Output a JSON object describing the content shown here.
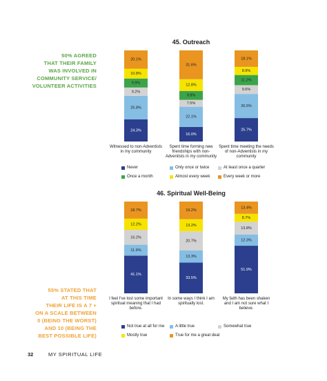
{
  "chart_data": [
    {
      "type": "bar",
      "stacked": true,
      "title": "45. Outreach",
      "categories": [
        "Witnessed to non-Adventists in my community",
        "Spent time forming new friendships with non-Adventists in my community",
        "Spent time meeting the needs of non-Adventists in my community"
      ],
      "series": [
        {
          "name": "Never",
          "color": "#2b3f8e",
          "values": [
            24.3,
            16.0,
            25.7
          ],
          "value_labels": [
            "24.3%",
            "16.0%",
            "25.7%"
          ]
        },
        {
          "name": "Only once or twice",
          "color": "#86bde3",
          "values": [
            25.8,
            22.1,
            26.5
          ],
          "value_labels": [
            "25.8%",
            "22.1%",
            "26.5%"
          ]
        },
        {
          "name": "At least once a quarter",
          "color": "#d3d3d3",
          "values": [
            9.2,
            7.5,
            9.6
          ],
          "value_labels": [
            "9.2%",
            "7.5%",
            "9.6%"
          ]
        },
        {
          "name": "Once a month",
          "color": "#3ba449",
          "values": [
            9.9,
            9.8,
            11.2
          ],
          "value_labels": [
            "9.9%",
            "9.8%",
            "11.2%"
          ]
        },
        {
          "name": "Almost every week",
          "color": "#f6e400",
          "values": [
            10.8,
            12.8,
            8.9
          ],
          "value_labels": [
            "10.8%",
            "12.8%",
            "8.9%"
          ]
        },
        {
          "name": "Every week or more",
          "color": "#e99520",
          "values": [
            20.1,
            31.6,
            18.1
          ],
          "value_labels": [
            "20.1%",
            "31.6%",
            "18.1%"
          ]
        }
      ]
    },
    {
      "type": "bar",
      "stacked": true,
      "title": "46. Spiritual Well-Being",
      "categories": [
        "I feel I've lost some important spiritual meaning that I had before.",
        "In some ways I think I am spiritually lost.",
        "My faith has been shaken and I am not sure what I believe."
      ],
      "series": [
        {
          "name": "Not true at all for me",
          "color": "#2b3f8e",
          "values": [
            41.1,
            33.5,
            51.9
          ],
          "value_labels": [
            "41.1%",
            "33.5%",
            "51.9%"
          ]
        },
        {
          "name": "A little true",
          "color": "#86bde3",
          "values": [
            11.9,
            13.3,
            12.3
          ],
          "value_labels": [
            "11.9%",
            "13.3%",
            "12.3%"
          ]
        },
        {
          "name": "Somewhat true",
          "color": "#d3d3d3",
          "values": [
            16.2,
            20.7,
            13.8
          ],
          "value_labels": [
            "16.2%",
            "20.7%",
            "13.8%"
          ]
        },
        {
          "name": "Mostly true",
          "color": "#f6e400",
          "values": [
            12.2,
            13.2,
            8.7
          ],
          "value_labels": [
            "12.2%",
            "13.2%",
            "8.7%"
          ]
        },
        {
          "name": "True for me a great deal",
          "color": "#e99520",
          "values": [
            18.7,
            19.2,
            13.4
          ],
          "value_labels": [
            "18.7%",
            "19.2%",
            "13.4%"
          ]
        }
      ]
    }
  ],
  "sidebar_notes": [
    {
      "color": "#5aa545",
      "lines": [
        "50% AGREED",
        "THAT THEIR FAMILY",
        "WAS INVOLVED IN",
        "COMMUNITY SERVICE/",
        "VOLUNTEER ACTIVITIES"
      ]
    },
    {
      "color": "#f0a032",
      "lines": [
        "55% STATED THAT",
        "AT THIS TIME",
        "THEIR LIFE IS A 7 +",
        "ON A SCALE BETWEEN",
        "0 (BEING THE WORST)",
        "AND 10 (BEING THE",
        "BEST POSSIBLE LIFE)"
      ]
    }
  ],
  "footer": {
    "page_number": 32,
    "section": "MY SPIRITUAL LIFE"
  }
}
